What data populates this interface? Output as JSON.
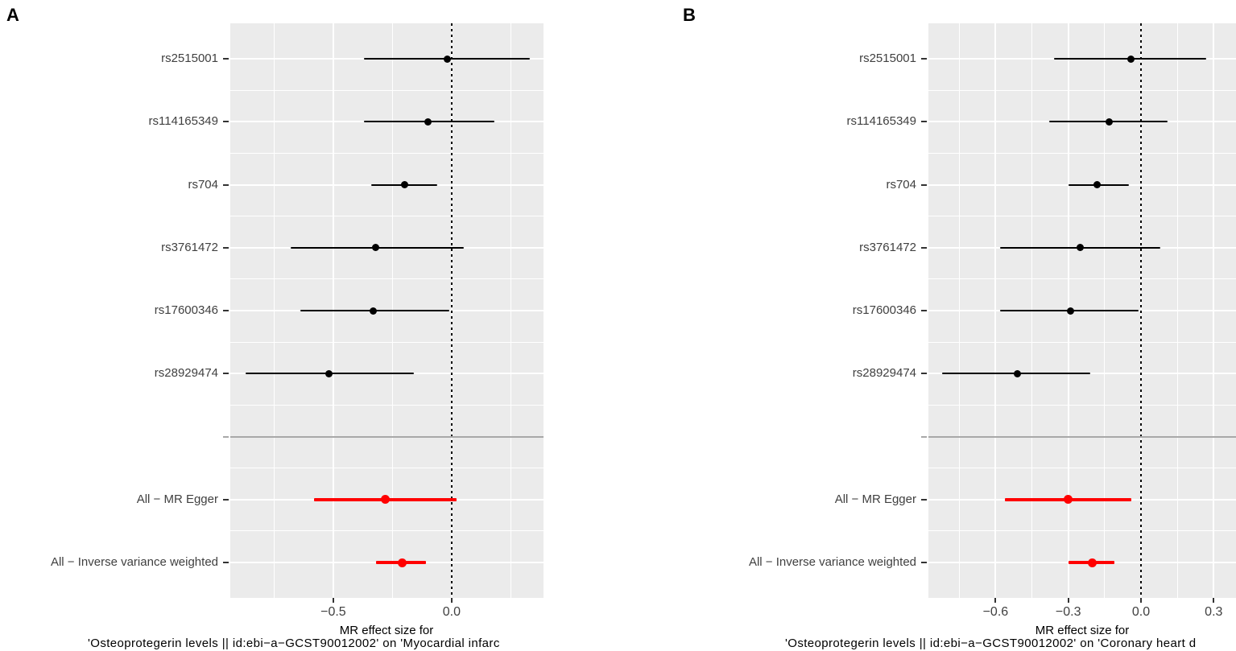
{
  "colors": {
    "panel_bg": "#EBEBEB",
    "grid": "#FFFFFF",
    "snp_color": "#000000",
    "summary_color": "#FF0000",
    "separator": "#A8A8A8",
    "axis_text": "#404040",
    "tick_mark": "#333333"
  },
  "chart_data": [
    {
      "type": "forest",
      "panel_label": "A",
      "xlabel_line1": "MR effect size for",
      "xlabel_line2": "'Osteoprotegerin levels || id:ebi−a−GCST90012002' on 'Myocardial infarc",
      "xlim": [
        -0.935,
        0.388
      ],
      "x_ticks": [
        -0.5,
        0.0
      ],
      "x_tick_labels": [
        "−0.5",
        "0.0"
      ],
      "x_minor_gridlines": [
        -0.75,
        -0.25,
        0.25
      ],
      "zero_reference_line": 0.0,
      "legend_position": "none",
      "grid": true,
      "rows": [
        {
          "label": "rs2515001",
          "estimate": -0.02,
          "ci_low": -0.37,
          "ci_high": 0.33,
          "group": "snp"
        },
        {
          "label": "rs114165349",
          "estimate": -0.1,
          "ci_low": -0.37,
          "ci_high": 0.18,
          "group": "snp"
        },
        {
          "label": "rs704",
          "estimate": -0.2,
          "ci_low": -0.34,
          "ci_high": -0.06,
          "group": "snp"
        },
        {
          "label": "rs3761472",
          "estimate": -0.32,
          "ci_low": -0.68,
          "ci_high": 0.05,
          "group": "snp"
        },
        {
          "label": "rs17600346",
          "estimate": -0.33,
          "ci_low": -0.64,
          "ci_high": -0.01,
          "group": "snp"
        },
        {
          "label": "rs28929474",
          "estimate": -0.52,
          "ci_low": -0.87,
          "ci_high": -0.16,
          "group": "snp"
        },
        {
          "label": "",
          "group": "separator"
        },
        {
          "label": "All − MR Egger",
          "estimate": -0.28,
          "ci_low": -0.58,
          "ci_high": 0.02,
          "group": "summary"
        },
        {
          "label": "All − Inverse variance weighted",
          "estimate": -0.21,
          "ci_low": -0.32,
          "ci_high": -0.11,
          "group": "summary"
        }
      ]
    },
    {
      "type": "forest",
      "panel_label": "B",
      "xlabel_line1": "MR effect size for",
      "xlabel_line2": "'Osteoprotegerin levels || id:ebi−a−GCST90012002' on 'Coronary heart d",
      "xlim": [
        -0.877,
        0.392
      ],
      "x_ticks": [
        -0.6,
        -0.3,
        0.0,
        0.3
      ],
      "x_tick_labels": [
        "−0.6",
        "−0.3",
        "0.0",
        "0.3"
      ],
      "x_minor_gridlines": [
        -0.75,
        -0.45,
        -0.15,
        0.15
      ],
      "zero_reference_line": 0.0,
      "legend_position": "none",
      "grid": true,
      "rows": [
        {
          "label": "rs2515001",
          "estimate": -0.04,
          "ci_low": -0.36,
          "ci_high": 0.27,
          "group": "snp"
        },
        {
          "label": "rs114165349",
          "estimate": -0.13,
          "ci_low": -0.38,
          "ci_high": 0.11,
          "group": "snp"
        },
        {
          "label": "rs704",
          "estimate": -0.18,
          "ci_low": -0.3,
          "ci_high": -0.05,
          "group": "snp"
        },
        {
          "label": "rs3761472",
          "estimate": -0.25,
          "ci_low": -0.58,
          "ci_high": 0.08,
          "group": "snp"
        },
        {
          "label": "rs17600346",
          "estimate": -0.29,
          "ci_low": -0.58,
          "ci_high": -0.01,
          "group": "snp"
        },
        {
          "label": "rs28929474",
          "estimate": -0.51,
          "ci_low": -0.82,
          "ci_high": -0.21,
          "group": "snp"
        },
        {
          "label": "",
          "group": "separator"
        },
        {
          "label": "All − MR Egger",
          "estimate": -0.3,
          "ci_low": -0.56,
          "ci_high": -0.04,
          "group": "summary"
        },
        {
          "label": "All − Inverse variance weighted",
          "estimate": -0.2,
          "ci_low": -0.3,
          "ci_high": -0.11,
          "group": "summary"
        }
      ]
    }
  ]
}
